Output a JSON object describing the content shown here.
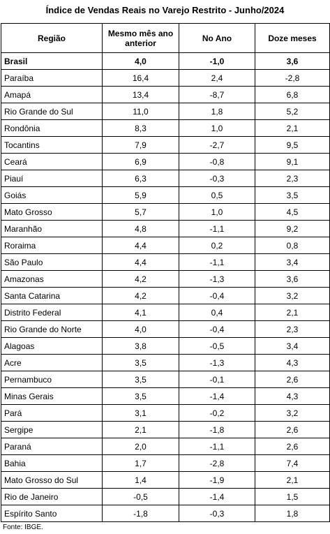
{
  "title": "Índice de Vendas Reais no Varejo Restrito - Junho/2024",
  "table": {
    "columns": [
      "Região",
      "Mesmo mês ano anterior",
      "No Ano",
      "Doze meses"
    ],
    "rows": [
      [
        "Brasil",
        "4,0",
        "-1,0",
        "3,6"
      ],
      [
        "Paraíba",
        "16,4",
        "2,4",
        "-2,8"
      ],
      [
        "Amapá",
        "13,4",
        "-8,7",
        "6,8"
      ],
      [
        "Rio Grande do Sul",
        "11,0",
        "1,8",
        "5,2"
      ],
      [
        "Rondônia",
        "8,3",
        "1,0",
        "2,1"
      ],
      [
        "Tocantins",
        "7,9",
        "-2,7",
        "9,5"
      ],
      [
        "Ceará",
        "6,9",
        "-0,8",
        "9,1"
      ],
      [
        "Piauí",
        "6,3",
        "-0,3",
        "2,3"
      ],
      [
        "Goiás",
        "5,9",
        "0,5",
        "3,5"
      ],
      [
        "Mato Grosso",
        "5,7",
        "1,0",
        "4,5"
      ],
      [
        "Maranhão",
        "4,8",
        "-1,1",
        "9,2"
      ],
      [
        "Roraima",
        "4,4",
        "0,2",
        "0,8"
      ],
      [
        "São Paulo",
        "4,4",
        "-1,1",
        "3,4"
      ],
      [
        "Amazonas",
        "4,2",
        "-1,3",
        "3,6"
      ],
      [
        "Santa Catarina",
        "4,2",
        "-0,4",
        "3,2"
      ],
      [
        "Distrito Federal",
        "4,1",
        "0,4",
        "2,1"
      ],
      [
        "Rio Grande do Norte",
        "4,0",
        "-0,4",
        "2,3"
      ],
      [
        "Alagoas",
        "3,8",
        "-0,5",
        "3,4"
      ],
      [
        "Acre",
        "3,5",
        "-1,3",
        "4,3"
      ],
      [
        "Pernambuco",
        "3,5",
        "-0,1",
        "2,6"
      ],
      [
        "Minas Gerais",
        "3,5",
        "-1,4",
        "4,3"
      ],
      [
        "Pará",
        "3,1",
        "-0,2",
        "3,2"
      ],
      [
        "Sergipe",
        "2,1",
        "-1,8",
        "2,6"
      ],
      [
        "Paraná",
        "2,0",
        "-1,1",
        "2,6"
      ],
      [
        "Bahia",
        "1,7",
        "-2,8",
        "7,4"
      ],
      [
        "Mato Grosso do Sul",
        "1,4",
        "-1,9",
        "2,1"
      ],
      [
        "Rio de Janeiro",
        "-0,5",
        "-1,4",
        "1,5"
      ],
      [
        "Espírito Santo",
        "-1,8",
        "-0,3",
        "1,8"
      ]
    ]
  },
  "source": "Fonte: IBGE."
}
